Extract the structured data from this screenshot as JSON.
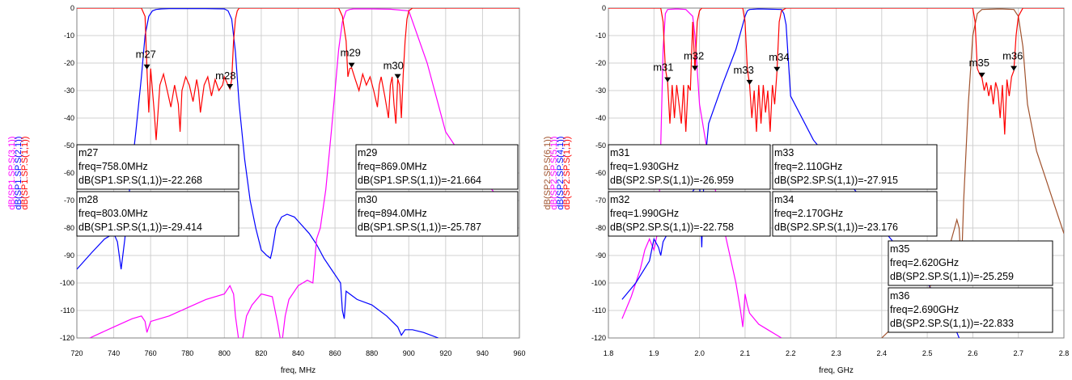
{
  "chart_data": [
    {
      "type": "line",
      "xlabel": "freq, MHz",
      "ylabel_parts": [
        {
          "text": "dB(SP1.SP.S(3,1))",
          "color": "#ff00ff"
        },
        {
          "text": "dB(SP1.SP.S(2,1))",
          "color": "#0000ff"
        },
        {
          "text": "dB(SP1.SP.S(1,1))",
          "color": "#ff0000"
        }
      ],
      "xlim": [
        720,
        960
      ],
      "ylim": [
        -120,
        0
      ],
      "xticks": [
        "720",
        "740",
        "760",
        "780",
        "800",
        "820",
        "840",
        "860",
        "880",
        "900",
        "920",
        "940",
        "960"
      ],
      "yticks": [
        "0",
        "-10",
        "-20",
        "-30",
        "-40",
        "-50",
        "-60",
        "-70",
        "-80",
        "-90",
        "-100",
        "-110",
        "-120"
      ],
      "grid": true,
      "series": [
        {
          "color": "#0000ff",
          "x": [
            720,
            728,
            735,
            740,
            742,
            744,
            746,
            749,
            752,
            755,
            757,
            759,
            761,
            763,
            766,
            770,
            780,
            790,
            800,
            802,
            804,
            806,
            808,
            811,
            814,
            817,
            820,
            823,
            825,
            826,
            828,
            831,
            834,
            838,
            842,
            846,
            850,
            854,
            858,
            861,
            863,
            864,
            865,
            866,
            868,
            872,
            880,
            888,
            894,
            896,
            898,
            902,
            908,
            916
          ],
          "y": [
            -95,
            -89,
            -84,
            -82,
            -85,
            -95,
            -84,
            -63,
            -45,
            -25,
            -10,
            -3,
            -1,
            -0.5,
            -0.3,
            -0.2,
            -0.2,
            -0.2,
            -0.3,
            -1,
            -4,
            -16,
            -35,
            -55,
            -70,
            -80,
            -88,
            -90,
            -91,
            -88,
            -80,
            -76,
            -75,
            -76,
            -79,
            -82,
            -86,
            -91,
            -95,
            -98,
            -100,
            -110,
            -113,
            -103,
            -104,
            -106,
            -108,
            -112,
            -116,
            -119,
            -117,
            -117,
            -118,
            -120
          ]
        },
        {
          "color": "#ff00ff",
          "x": [
            727,
            740,
            750,
            755,
            757,
            758,
            760,
            770,
            780,
            790,
            800,
            803,
            805,
            806,
            808,
            810,
            812,
            815,
            820,
            826,
            829,
            831,
            833,
            835,
            840,
            845,
            848,
            850,
            852,
            855,
            858,
            860,
            862,
            864,
            866,
            868,
            870,
            880,
            890,
            900,
            910,
            920,
            930,
            940,
            950
          ],
          "y": [
            -120,
            -116,
            -113,
            -112,
            -114,
            -118,
            -114,
            -112,
            -109,
            -106,
            -104,
            -101,
            -104,
            -112,
            -122,
            -120,
            -112,
            -108,
            -104,
            -105,
            -115,
            -123,
            -112,
            -106,
            -101,
            -99,
            -100,
            -84,
            -80,
            -66,
            -45,
            -30,
            -15,
            -5,
            -1,
            -0.5,
            -0.3,
            -0.3,
            -0.4,
            -1,
            -20,
            -45,
            -55,
            -62,
            -70
          ]
        },
        {
          "color": "#ff0000",
          "x": [
            720,
            755,
            757,
            758,
            759,
            760,
            762,
            763,
            765,
            767,
            769,
            771,
            773,
            775,
            776,
            777,
            779,
            781,
            783,
            785,
            786,
            787,
            789,
            791,
            793,
            795,
            797,
            799,
            800,
            802,
            803,
            804,
            805,
            806,
            807,
            808,
            810,
            830,
            862,
            864,
            866,
            867,
            868,
            869,
            871,
            873,
            875,
            877,
            879,
            881,
            883,
            884,
            885,
            887,
            889,
            890,
            891,
            892,
            893,
            894,
            895,
            896,
            897,
            898,
            899,
            900,
            902,
            960
          ],
          "y": [
            0,
            0,
            -3,
            -22,
            -38,
            -22,
            -38,
            -48,
            -28,
            -24,
            -30,
            -36,
            -28,
            -35,
            -45,
            -30,
            -25,
            -28,
            -34,
            -26,
            -30,
            -38,
            -28,
            -25,
            -32,
            -26,
            -30,
            -28,
            -25,
            -28,
            -29.4,
            -26,
            -12,
            -4,
            -1,
            0,
            0,
            0,
            0,
            -3,
            -12,
            -25,
            -22,
            -21.7,
            -26,
            -30,
            -24,
            -28,
            -25,
            -30,
            -36,
            -28,
            -25,
            -32,
            -40,
            -28,
            -25,
            -35,
            -42,
            -25.8,
            -28,
            -40,
            -24,
            -12,
            -4,
            -1,
            0,
            0
          ]
        }
      ],
      "markers": [
        {
          "name": "m27",
          "x": 758,
          "y": -22.268
        },
        {
          "name": "m28",
          "x": 803,
          "y": -29.414
        },
        {
          "name": "m29",
          "x": 869,
          "y": -21.664
        },
        {
          "name": "m30",
          "x": 894,
          "y": -25.787
        }
      ],
      "boxes": [
        [
          "m27",
          "freq=758.0MHz",
          "dB(SP1.SP.S(1,1))=-22.268"
        ],
        [
          "m28",
          "freq=803.0MHz",
          "dB(SP1.SP.S(1,1))=-29.414"
        ],
        [
          "m29",
          "freq=869.0MHz",
          "dB(SP1.SP.S(1,1))=-21.664"
        ],
        [
          "m30",
          "freq=894.0MHz",
          "dB(SP1.SP.S(1,1))=-25.787"
        ]
      ]
    },
    {
      "type": "line",
      "xlabel": "freq, GHz",
      "ylabel_parts": [
        {
          "text": "dB(SP2.SP.S(6,1))",
          "color": "#a0522d"
        },
        {
          "text": "dB(SP2.SP.S(5,1))",
          "color": "#ff00ff"
        },
        {
          "text": "dB(SP2.SP.S(4,1))",
          "color": "#0000ff"
        },
        {
          "text": "dB(SP2.SP.S(1,1))",
          "color": "#ff0000"
        }
      ],
      "xlim": [
        1.8,
        2.8
      ],
      "ylim": [
        -120,
        0
      ],
      "xticks": [
        "1.8",
        "1.9",
        "2.0",
        "2.1",
        "2.2",
        "2.3",
        "2.4",
        "2.5",
        "2.6",
        "2.7",
        "2.8"
      ],
      "yticks": [
        "0",
        "-10",
        "-20",
        "-30",
        "-40",
        "-50",
        "-60",
        "-70",
        "-80",
        "-90",
        "-100",
        "-110",
        "-120"
      ],
      "grid": true,
      "series": [
        {
          "color": "#ff00ff",
          "x": [
            1.83,
            1.85,
            1.87,
            1.88,
            1.89,
            1.9,
            1.91,
            1.915,
            1.92,
            1.925,
            1.93,
            1.95,
            1.97,
            1.985,
            1.99,
            2.0,
            2.02,
            2.04,
            2.06,
            2.08,
            2.09,
            2.095,
            2.1,
            2.105,
            2.11,
            2.13,
            2.15,
            2.17,
            2.18
          ],
          "y": [
            -113,
            -105,
            -95,
            -88,
            -84,
            -88,
            -80,
            -50,
            -15,
            -2,
            -0.5,
            -0.3,
            -0.5,
            -3,
            -10,
            -35,
            -55,
            -70,
            -85,
            -100,
            -110,
            -116,
            -104,
            -108,
            -111,
            -115,
            -117,
            -119,
            -120
          ]
        },
        {
          "color": "#0000ff",
          "x": [
            1.83,
            1.86,
            1.89,
            1.9,
            1.91,
            1.915,
            1.92,
            1.95,
            1.98,
            2.0,
            2.005,
            2.01,
            2.02,
            2.05,
            2.08,
            2.1,
            2.105,
            2.11,
            2.13,
            2.18,
            2.185,
            2.19,
            2.2,
            2.25,
            2.3,
            2.35,
            2.4,
            2.45,
            2.5,
            2.55,
            2.57
          ],
          "y": [
            -106,
            -100,
            -92,
            -84,
            -87,
            -90,
            -85,
            -76,
            -68,
            -63,
            -87,
            -60,
            -42,
            -28,
            -15,
            -3,
            -1,
            -0.5,
            -0.3,
            -0.5,
            -2,
            -6,
            -32,
            -48,
            -58,
            -68,
            -80,
            -90,
            -100,
            -112,
            -120
          ]
        },
        {
          "color": "#a0522d",
          "x": [
            2.4,
            2.45,
            2.5,
            2.54,
            2.56,
            2.565,
            2.57,
            2.575,
            2.58,
            2.59,
            2.6,
            2.61,
            2.62,
            2.66,
            2.69,
            2.7,
            2.71,
            2.72,
            2.74,
            2.76,
            2.78,
            2.8
          ],
          "y": [
            -120,
            -112,
            -103,
            -92,
            -80,
            -77,
            -80,
            -95,
            -70,
            -35,
            -10,
            -2,
            -0.5,
            -0.3,
            -0.5,
            -3,
            -14,
            -35,
            -52,
            -62,
            -72,
            -82
          ]
        },
        {
          "color": "#ff0000",
          "x": [
            1.8,
            1.915,
            1.92,
            1.925,
            1.93,
            1.935,
            1.94,
            1.945,
            1.95,
            1.955,
            1.96,
            1.965,
            1.97,
            1.975,
            1.98,
            1.985,
            1.99,
            1.995,
            2.0,
            2.005,
            2.095,
            2.1,
            2.105,
            2.11,
            2.115,
            2.12,
            2.125,
            2.13,
            2.135,
            2.14,
            2.145,
            2.15,
            2.155,
            2.16,
            2.165,
            2.17,
            2.175,
            2.18,
            2.19,
            2.6,
            2.605,
            2.61,
            2.615,
            2.62,
            2.625,
            2.63,
            2.635,
            2.64,
            2.645,
            2.65,
            2.655,
            2.66,
            2.665,
            2.67,
            2.675,
            2.68,
            2.685,
            2.69,
            2.695,
            2.7,
            2.71,
            2.8
          ],
          "y": [
            0,
            0,
            -5,
            -22,
            -27,
            -42,
            -28,
            -40,
            -28,
            -35,
            -42,
            -28,
            -45,
            -28,
            -30,
            -5,
            -22.8,
            -5,
            -1,
            0,
            0,
            -5,
            -22,
            -27.9,
            -40,
            -30,
            -45,
            -28,
            -42,
            -28,
            -38,
            -30,
            -45,
            -28,
            -35,
            -23.2,
            -5,
            -1,
            0,
            0,
            -5,
            -22,
            -24,
            -25.3,
            -30,
            -27,
            -32,
            -28,
            -35,
            -27,
            -30,
            -40,
            -28,
            -46,
            -26,
            -32,
            -25,
            -22.8,
            -10,
            -3,
            0,
            0
          ]
        }
      ],
      "markers": [
        {
          "name": "m31",
          "x": 1.93,
          "y": -26.959
        },
        {
          "name": "m32",
          "x": 1.99,
          "y": -22.758
        },
        {
          "name": "m33",
          "x": 2.11,
          "y": -27.915
        },
        {
          "name": "m34",
          "x": 2.17,
          "y": -23.176
        },
        {
          "name": "m35",
          "x": 2.62,
          "y": -25.259
        },
        {
          "name": "m36",
          "x": 2.69,
          "y": -22.833
        }
      ],
      "boxes": [
        [
          "m31",
          "freq=1.930GHz",
          "dB(SP2.SP.S(1,1))=-26.959"
        ],
        [
          "m32",
          "freq=1.990GHz",
          "dB(SP2.SP.S(1,1))=-22.758"
        ],
        [
          "m33",
          "freq=2.110GHz",
          "dB(SP2.SP.S(1,1))=-27.915"
        ],
        [
          "m34",
          "freq=2.170GHz",
          "dB(SP2.SP.S(1,1))=-23.176"
        ],
        [
          "m35",
          "freq=2.620GHz",
          "dB(SP2.SP.S(1,1))=-25.259"
        ],
        [
          "m36",
          "freq=2.690GHz",
          "dB(SP2.SP.S(1,1))=-22.833"
        ]
      ]
    }
  ]
}
